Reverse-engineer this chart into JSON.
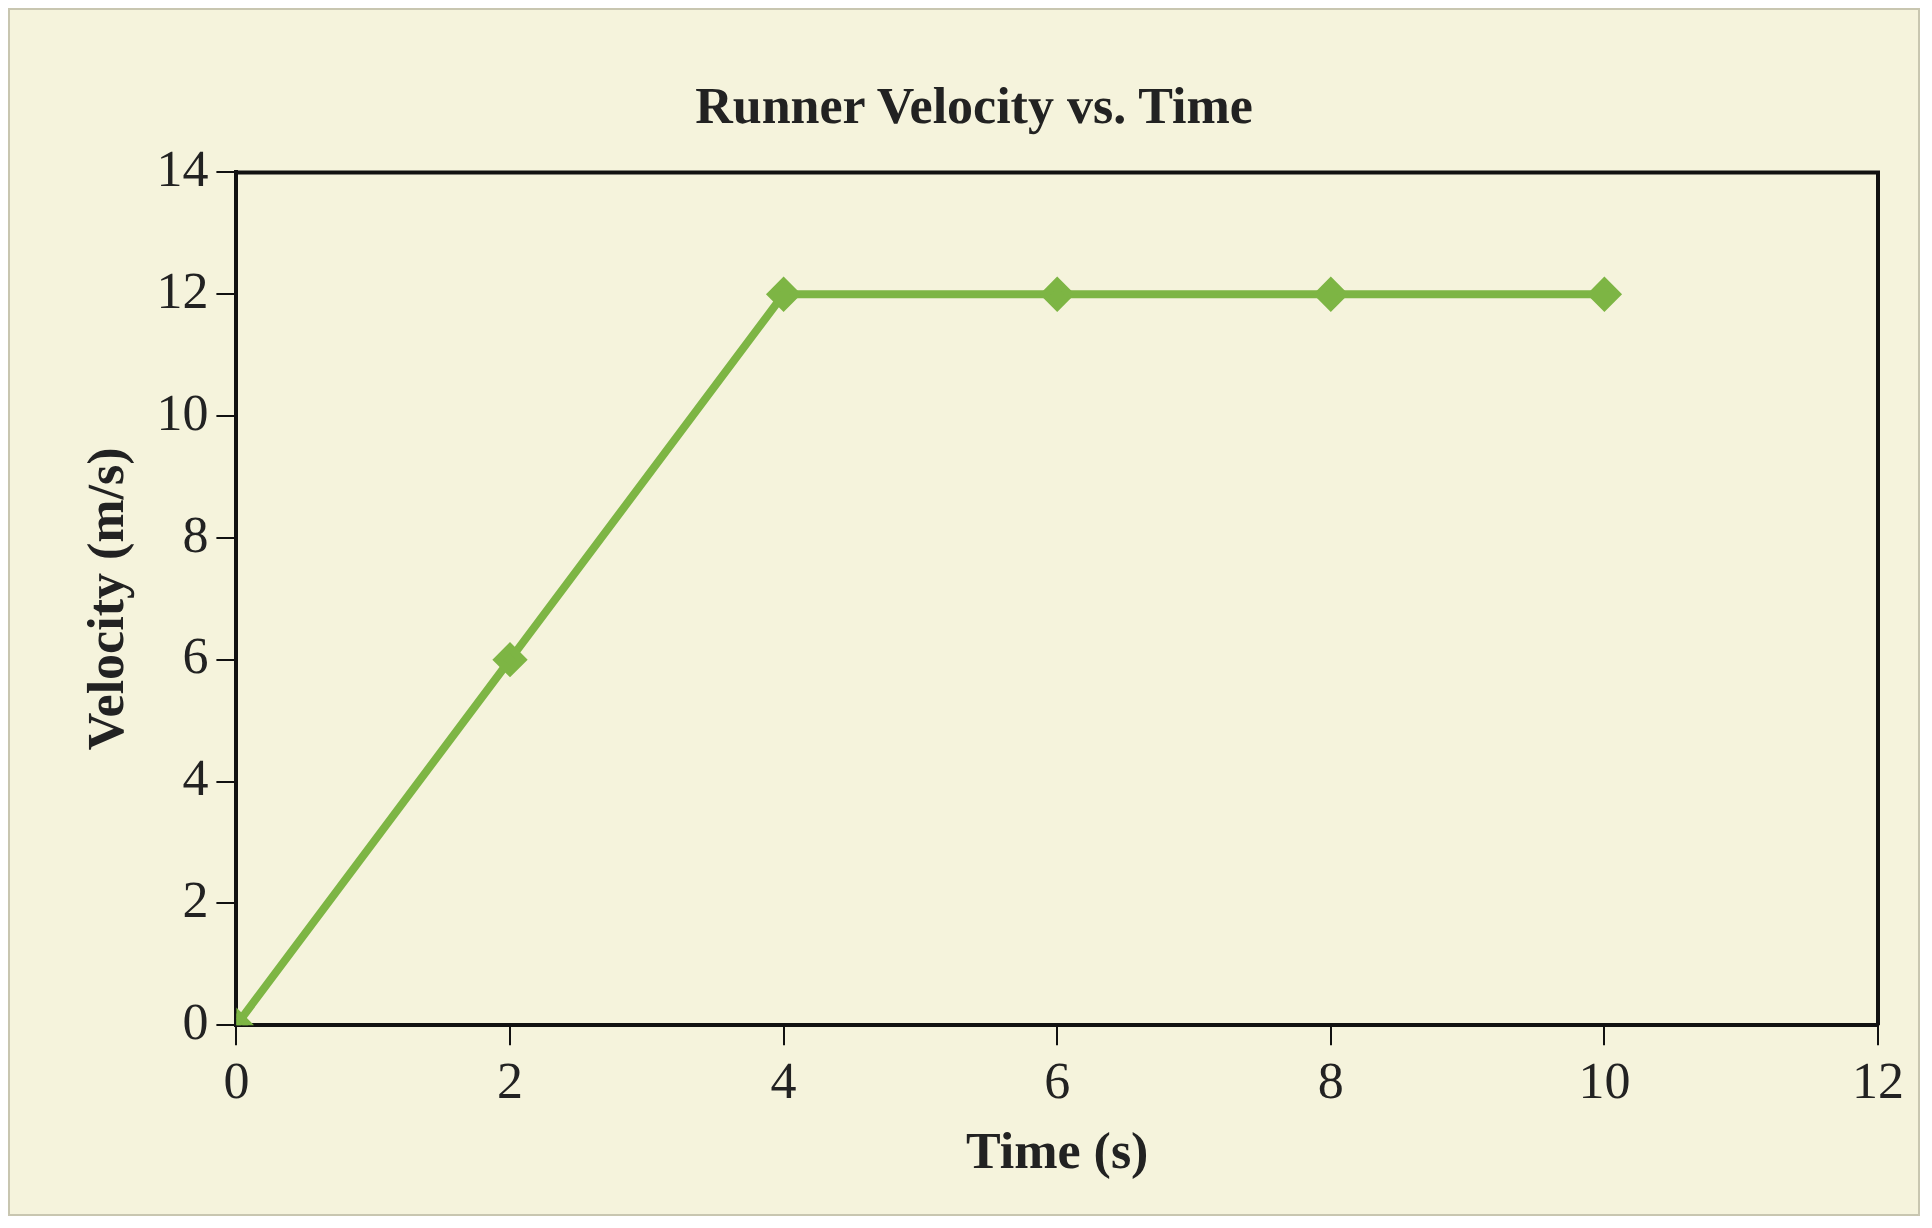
{
  "chart_data": {
    "type": "line",
    "title": "Runner Velocity vs. Time",
    "xlabel": "Time (s)",
    "ylabel": "Velocity (m/s)",
    "x": [
      0,
      2,
      4,
      6,
      8,
      10
    ],
    "series": [
      {
        "color": "#7db544",
        "values": [
          0,
          6,
          12,
          12,
          12,
          12
        ]
      }
    ],
    "xlim": [
      0,
      12
    ],
    "xticks": [
      0,
      2,
      4,
      6,
      8,
      10,
      12
    ],
    "ylim": [
      0,
      14
    ],
    "yticks": [
      0,
      2,
      4,
      6,
      8,
      10,
      12,
      14
    ],
    "grid": false,
    "legend": false,
    "marker": "diamond",
    "line_style": "solid"
  }
}
